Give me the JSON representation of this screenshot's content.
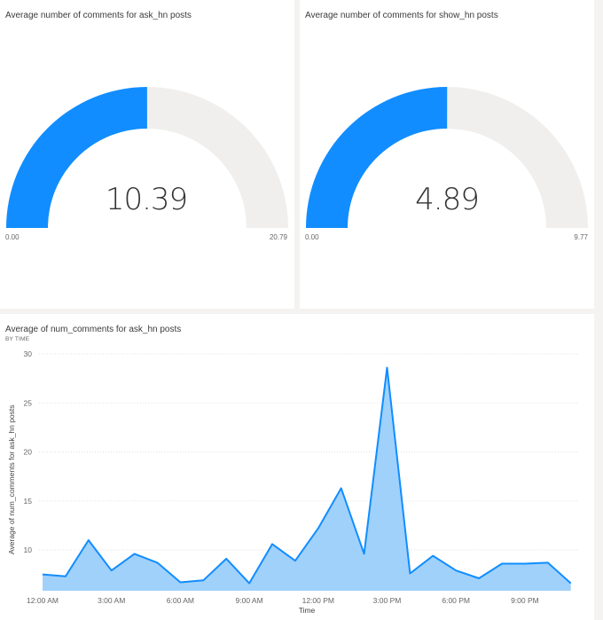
{
  "colors": {
    "accent": "#118dff",
    "gauge_track": "#f0efee",
    "area_fill": "#a0d1fb",
    "line": "#118dff",
    "background": "#f4f3f2",
    "panel": "#ffffff"
  },
  "gauges": [
    {
      "title": "Average number of comments for ask_hn posts",
      "value": "10.39",
      "min": "0.00",
      "max": "20.79"
    },
    {
      "title": "Average number of comments for show_hn posts",
      "value": "4.89",
      "min": "0.00",
      "max": "9.77"
    }
  ],
  "line_chart": {
    "title": "Average of num_comments for ask_hn posts",
    "subtitle": "BY TIME",
    "ylabel": "Average of num_comments for ask_hn posts",
    "xlabel": "Time",
    "y_ticks": [
      "30",
      "25",
      "20",
      "15",
      "10"
    ],
    "x_ticks": [
      "12:00 AM",
      "3:00 AM",
      "6:00 AM",
      "9:00 AM",
      "12:00 PM",
      "3:00 PM",
      "6:00 PM",
      "9:00 PM"
    ]
  },
  "chart_data": [
    {
      "type": "gauge",
      "title": "Average number of comments for ask_hn posts",
      "value": 10.39,
      "min": 0.0,
      "max": 20.79
    },
    {
      "type": "gauge",
      "title": "Average number of comments for show_hn posts",
      "value": 4.89,
      "min": 0.0,
      "max": 9.77
    },
    {
      "type": "area",
      "title": "Average of num_comments for ask_hn posts",
      "subtitle": "BY TIME",
      "xlabel": "Time",
      "ylabel": "Average of num_comments for ask_hn posts",
      "x": [
        "12:00 AM",
        "1:00 AM",
        "2:00 AM",
        "3:00 AM",
        "4:00 AM",
        "5:00 AM",
        "6:00 AM",
        "7:00 AM",
        "8:00 AM",
        "9:00 AM",
        "10:00 AM",
        "11:00 AM",
        "12:00 PM",
        "1:00 PM",
        "2:00 PM",
        "3:00 PM",
        "4:00 PM",
        "5:00 PM",
        "6:00 PM",
        "7:00 PM",
        "8:00 PM",
        "9:00 PM",
        "10:00 PM",
        "11:00 PM"
      ],
      "series": [
        {
          "name": "Average of num_comments",
          "values": [
            7.5,
            7.3,
            11.0,
            7.9,
            9.6,
            8.7,
            6.7,
            6.9,
            9.1,
            6.6,
            10.6,
            8.9,
            12.2,
            16.3,
            9.6,
            28.6,
            7.6,
            9.4,
            7.9,
            7.1,
            8.6,
            8.6,
            8.7,
            6.6
          ]
        }
      ],
      "y_ticks": [
        10,
        15,
        20,
        25,
        30
      ],
      "x_tick_labels": [
        "12:00 AM",
        "3:00 AM",
        "6:00 AM",
        "9:00 AM",
        "12:00 PM",
        "3:00 PM",
        "6:00 PM",
        "9:00 PM"
      ],
      "ylim": [
        5.8,
        30
      ],
      "grid": true,
      "legend": "none"
    }
  ]
}
